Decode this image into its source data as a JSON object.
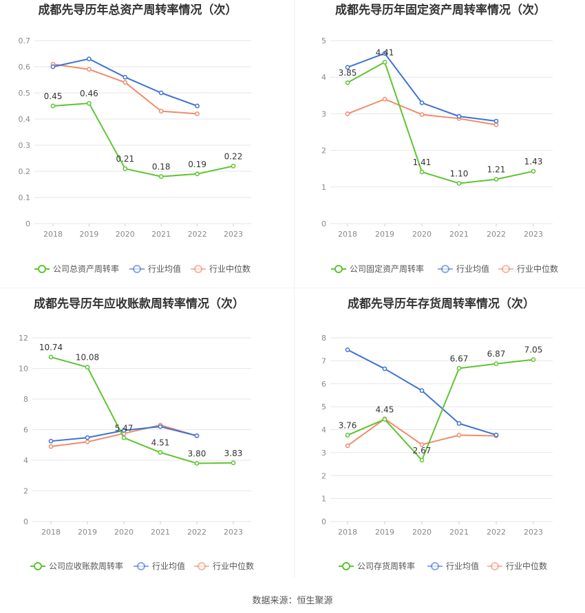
{
  "source": "数据来源：恒生聚源",
  "colors": {
    "company": "#5cc52f",
    "avg": "#3d71d6",
    "median": "#f28a69",
    "grid": "#e6e6e6",
    "axis_text": "#888888",
    "title": "#333333",
    "label": "#333333"
  },
  "chart_data": [
    {
      "type": "line",
      "title": "成都先导历年总资产周转率情况（次）",
      "categories": [
        "2018",
        "2019",
        "2020",
        "2021",
        "2022",
        "2023"
      ],
      "ylim": [
        0,
        0.7
      ],
      "yticks": [
        "0",
        "0.1",
        "0.2",
        "0.3",
        "0.4",
        "0.5",
        "0.6",
        "0.7"
      ],
      "grid": true,
      "legend_position": "bottom",
      "series": [
        {
          "name": "公司总资产周转率",
          "color": "#5cc52f",
          "values": [
            0.45,
            0.46,
            0.21,
            0.18,
            0.19,
            0.22
          ],
          "labels": [
            "0.45",
            "0.46",
            "0.21",
            "0.18",
            "0.19",
            "0.22"
          ]
        },
        {
          "name": "行业均值",
          "color": "#3d71d6",
          "values": [
            0.6,
            0.63,
            0.56,
            0.5,
            0.45,
            null
          ]
        },
        {
          "name": "行业中位数",
          "color": "#f28a69",
          "values": [
            0.61,
            0.59,
            0.54,
            0.43,
            0.42,
            null
          ]
        }
      ]
    },
    {
      "type": "line",
      "title": "成都先导历年固定资产周转率情况（次）",
      "categories": [
        "2018",
        "2019",
        "2020",
        "2021",
        "2022",
        "2023"
      ],
      "ylim": [
        0,
        5
      ],
      "yticks": [
        "0",
        "1",
        "2",
        "3",
        "4",
        "5"
      ],
      "grid": true,
      "legend_position": "bottom",
      "series": [
        {
          "name": "公司固定资产周转率",
          "color": "#5cc52f",
          "values": [
            3.85,
            4.41,
            1.41,
            1.1,
            1.21,
            1.43
          ],
          "labels": [
            "3.85",
            "4.41",
            "1.41",
            "1.10",
            "1.21",
            "1.43"
          ]
        },
        {
          "name": "行业均值",
          "color": "#3d71d6",
          "values": [
            4.27,
            4.65,
            3.3,
            2.93,
            2.8,
            null
          ]
        },
        {
          "name": "行业中位数",
          "color": "#f28a69",
          "values": [
            3.0,
            3.4,
            2.98,
            2.87,
            2.7,
            null
          ]
        }
      ]
    },
    {
      "type": "line",
      "title": "成都先导历年应收账款周转率情况（次）",
      "categories": [
        "2018",
        "2019",
        "2020",
        "2021",
        "2022",
        "2023"
      ],
      "ylim": [
        0,
        12
      ],
      "yticks": [
        "0",
        "2",
        "4",
        "6",
        "8",
        "10",
        "12"
      ],
      "grid": true,
      "legend_position": "bottom",
      "series": [
        {
          "name": "公司应收账款周转率",
          "color": "#5cc52f",
          "values": [
            10.74,
            10.08,
            5.47,
            4.51,
            3.8,
            3.83
          ],
          "labels": [
            "10.74",
            "10.08",
            "5.47",
            "4.51",
            "3.80",
            "3.83"
          ]
        },
        {
          "name": "行业均值",
          "color": "#3d71d6",
          "values": [
            5.25,
            5.48,
            5.95,
            6.2,
            5.6,
            null
          ]
        },
        {
          "name": "行业中位数",
          "color": "#f28a69",
          "values": [
            4.9,
            5.2,
            5.75,
            6.3,
            5.6,
            null
          ]
        }
      ]
    },
    {
      "type": "line",
      "title": "成都先导历年存货周转率情况（次）",
      "categories": [
        "2018",
        "2019",
        "2020",
        "2021",
        "2022",
        "2023"
      ],
      "ylim": [
        0,
        8
      ],
      "yticks": [
        "0",
        "1",
        "2",
        "3",
        "4",
        "5",
        "6",
        "7",
        "8"
      ],
      "grid": true,
      "legend_position": "bottom",
      "series": [
        {
          "name": "公司存货周转率",
          "color": "#5cc52f",
          "values": [
            3.76,
            4.45,
            2.67,
            6.67,
            6.87,
            7.05
          ],
          "labels": [
            "3.76",
            "4.45",
            "2.67",
            "6.67",
            "6.87",
            "7.05"
          ]
        },
        {
          "name": "行业均值",
          "color": "#3d71d6",
          "values": [
            7.48,
            6.65,
            5.7,
            4.27,
            3.77,
            null
          ]
        },
        {
          "name": "行业中位数",
          "color": "#f28a69",
          "values": [
            3.3,
            4.47,
            3.35,
            3.76,
            3.73,
            null
          ]
        }
      ]
    }
  ]
}
